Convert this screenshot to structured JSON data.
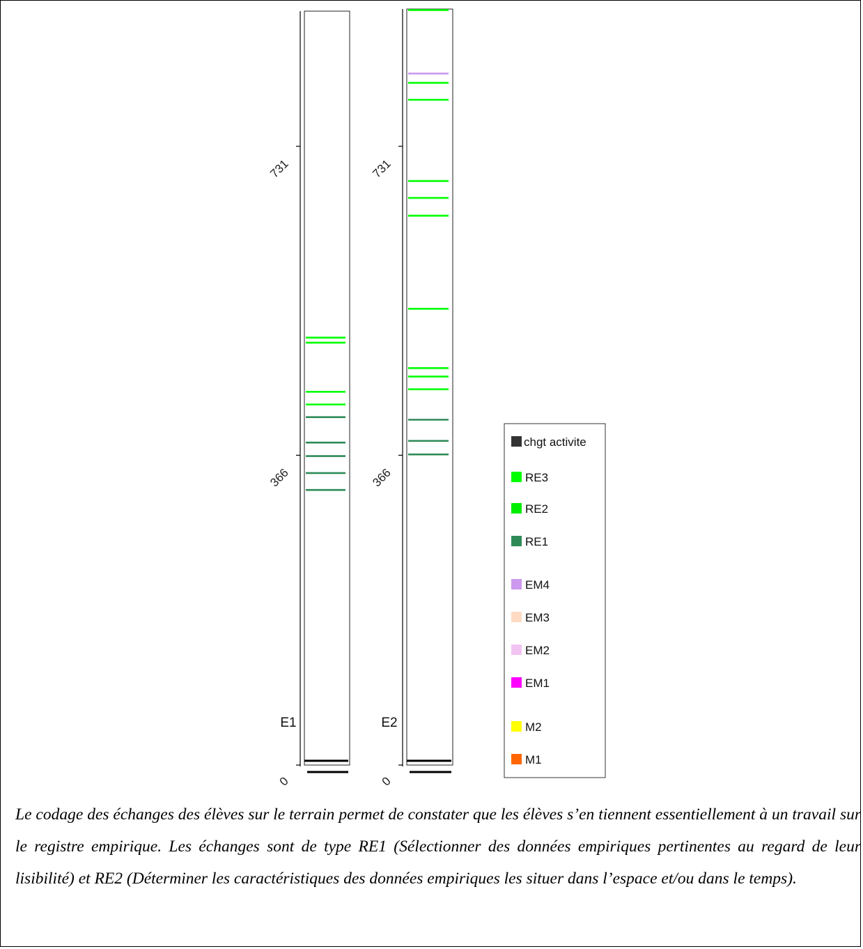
{
  "chart_data": {
    "type": "timeline",
    "y_ticks": [
      "0",
      "366",
      "731"
    ],
    "columns": [
      {
        "name": "E1",
        "events": [
          {
            "code": "RE3",
            "t": 505
          },
          {
            "code": "RE3",
            "t": 499
          },
          {
            "code": "RE3",
            "t": 441
          },
          {
            "code": "RE3",
            "t": 426
          },
          {
            "code": "RE1",
            "t": 411
          },
          {
            "code": "RE1",
            "t": 381
          },
          {
            "code": "RE1",
            "t": 365
          },
          {
            "code": "RE1",
            "t": 345
          },
          {
            "code": "RE1",
            "t": 325
          },
          {
            "code": "chgt activite",
            "t": 5
          },
          {
            "code": "chgt activite",
            "t": 0
          }
        ]
      },
      {
        "name": "E2",
        "events": [
          {
            "code": "RE3",
            "t": 892
          },
          {
            "code": "EM4",
            "t": 817
          },
          {
            "code": "RE3",
            "t": 806
          },
          {
            "code": "RE3",
            "t": 786
          },
          {
            "code": "RE3",
            "t": 690
          },
          {
            "code": "RE3",
            "t": 670
          },
          {
            "code": "RE3",
            "t": 649
          },
          {
            "code": "RE3",
            "t": 539
          },
          {
            "code": "RE3",
            "t": 469
          },
          {
            "code": "RE3",
            "t": 459
          },
          {
            "code": "RE3",
            "t": 444
          },
          {
            "code": "RE1",
            "t": 408
          },
          {
            "code": "RE1",
            "t": 383
          },
          {
            "code": "RE1",
            "t": 367
          },
          {
            "code": "chgt activite",
            "t": 5
          },
          {
            "code": "chgt activite",
            "t": 0
          }
        ]
      }
    ],
    "legend": [
      {
        "label": "chgt activite",
        "color": "#333333"
      },
      {
        "label": "RE3",
        "color": "#00ff00"
      },
      {
        "label": "RE2",
        "color": "#00ee00"
      },
      {
        "label": "RE1",
        "color": "#2e8b57"
      },
      {
        "label": "EM4",
        "color": "#cc99ee"
      },
      {
        "label": "EM3",
        "color": "#ffdbc4"
      },
      {
        "label": "EM2",
        "color": "#f2c4f2"
      },
      {
        "label": "EM1",
        "color": "#ff00ff"
      },
      {
        "label": "M2",
        "color": "#ffff00"
      },
      {
        "label": "M1",
        "color": "#ff6600"
      }
    ]
  },
  "caption": "Le codage des échanges des élèves sur le terrain permet de constater que les élèves s’en tiennent essentiellement à un travail sur le registre empirique. Les échanges sont de type RE1 (Sélectionner des données empiriques pertinentes au regard de leur lisibilité) et RE2 (Déterminer les caractéristiques des données empiriques les situer dans l’espace et/ou dans le temps)."
}
